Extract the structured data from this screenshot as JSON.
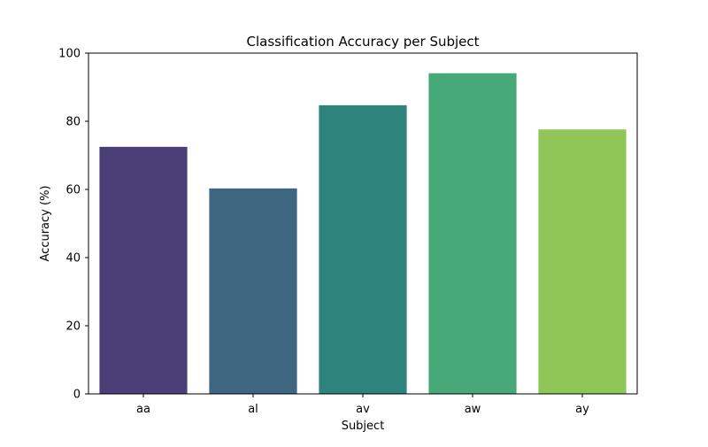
{
  "chart_data": {
    "type": "bar",
    "title": "Classification Accuracy per Subject",
    "xlabel": "Subject",
    "ylabel": "Accuracy (%)",
    "categories": [
      "aa",
      "al",
      "av",
      "aw",
      "ay"
    ],
    "values": [
      72.5,
      60.3,
      84.7,
      94.1,
      77.6
    ],
    "colors": [
      "#4a3f77",
      "#3e6680",
      "#2e837d",
      "#47a878",
      "#8fc657"
    ],
    "ylim": [
      0,
      100
    ],
    "yticks": [
      0,
      20,
      40,
      60,
      80,
      100
    ],
    "grid": false,
    "legend": "none"
  }
}
